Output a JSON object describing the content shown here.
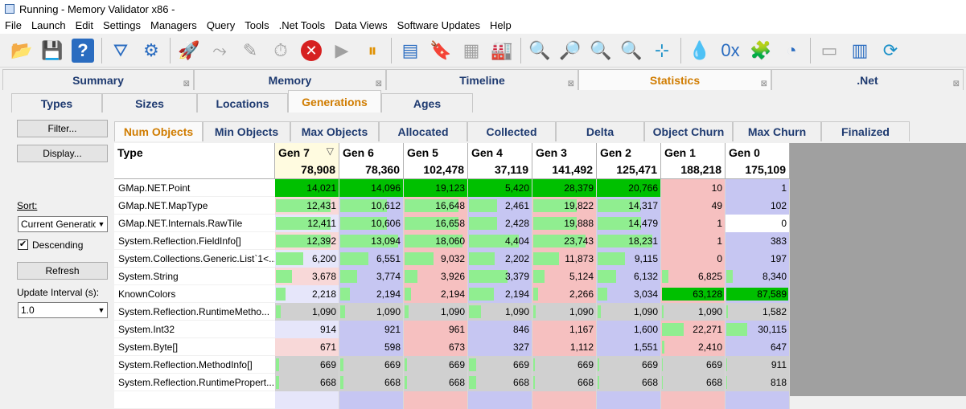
{
  "window": {
    "title": "Running - Memory Validator x86 -"
  },
  "menu": [
    "File",
    "Launch",
    "Edit",
    "Settings",
    "Managers",
    "Query",
    "Tools",
    ".Net Tools",
    "Data Views",
    "Software Updates",
    "Help"
  ],
  "toolbar": [
    {
      "name": "open-icon",
      "glyph": "📂",
      "cls": "ic-open"
    },
    {
      "name": "save-icon",
      "glyph": "💾",
      "cls": "ic-save"
    },
    {
      "name": "help-icon",
      "glyph": "?",
      "cls": "ic-help"
    },
    {
      "sep": true
    },
    {
      "name": "filter-icon",
      "glyph": "⛛",
      "cls": "ic-blue"
    },
    {
      "name": "settings-gear-icon",
      "glyph": "⚙",
      "cls": "ic-blue"
    },
    {
      "sep": true
    },
    {
      "name": "launch-rocket-icon",
      "glyph": "🚀",
      "cls": "ic-gray"
    },
    {
      "name": "inject-icon",
      "glyph": "⤳",
      "cls": "ic-gray"
    },
    {
      "name": "syringe-icon",
      "glyph": "✎",
      "cls": "ic-gray"
    },
    {
      "name": "stopwatch-icon",
      "glyph": "⏱",
      "cls": "ic-gray"
    },
    {
      "name": "stop-icon",
      "glyph": "✕",
      "cls": "ic-red"
    },
    {
      "name": "play-icon",
      "glyph": "▶",
      "cls": "ic-gray"
    },
    {
      "name": "pause-icon",
      "glyph": "⏸",
      "cls": "ic-orange"
    },
    {
      "sep": true
    },
    {
      "name": "add-watermark-icon",
      "glyph": "▤",
      "cls": "ic-blue"
    },
    {
      "name": "add-bookmark-icon",
      "glyph": "🔖",
      "cls": "ic-blue"
    },
    {
      "name": "compare-icon",
      "glyph": "▦",
      "cls": "ic-gray"
    },
    {
      "name": "factory-icon",
      "glyph": "🏭",
      "cls": "ic-gray"
    },
    {
      "sep": true
    },
    {
      "name": "search-icon",
      "glyph": "🔍",
      "cls": "ic-gray"
    },
    {
      "name": "find-address-icon",
      "glyph": "🔎",
      "cls": "ic-gray"
    },
    {
      "name": "find-object-icon",
      "glyph": "🔍",
      "cls": "ic-blue"
    },
    {
      "name": "find-id-icon",
      "glyph": "🔍",
      "cls": "ic-gray"
    },
    {
      "name": "goto-icon",
      "glyph": "⊹",
      "cls": "ic-teal"
    },
    {
      "sep": true
    },
    {
      "name": "leak-drop-icon",
      "glyph": "💧",
      "cls": "ic-teal"
    },
    {
      "name": "cd-icon",
      "glyph": "0x",
      "cls": "ic-blue"
    },
    {
      "name": "puzzle-icon",
      "glyph": "🧩",
      "cls": "ic-orange"
    },
    {
      "name": "refresh-clock-icon",
      "glyph": "◔",
      "cls": "ic-blue"
    },
    {
      "sep": true
    },
    {
      "name": "console-icon",
      "glyph": "▭",
      "cls": "ic-gray"
    },
    {
      "name": "columns-icon",
      "glyph": "▥",
      "cls": "ic-blue"
    },
    {
      "name": "update-icon",
      "glyph": "⟳",
      "cls": "ic-teal"
    }
  ],
  "main_tabs": [
    {
      "label": "Summary",
      "w": 238
    },
    {
      "label": "Memory",
      "w": 239
    },
    {
      "label": "Timeline",
      "w": 239
    },
    {
      "label": "Statistics",
      "w": 240,
      "active": true
    },
    {
      "label": ".Net",
      "w": 239
    }
  ],
  "stat_tabs": [
    {
      "label": "Types",
      "w": 113
    },
    {
      "label": "Sizes",
      "w": 118
    },
    {
      "label": "Locations",
      "w": 113
    },
    {
      "label": "Generations",
      "w": 116,
      "active": true
    },
    {
      "label": "Ages",
      "w": 114
    }
  ],
  "sub_tabs": [
    {
      "label": "Num Objects",
      "w": 110,
      "active": true
    },
    {
      "label": "Min Objects",
      "w": 109
    },
    {
      "label": "Max Objects",
      "w": 110
    },
    {
      "label": "Allocated",
      "w": 110
    },
    {
      "label": "Collected",
      "w": 110
    },
    {
      "label": "Delta",
      "w": 110
    },
    {
      "label": "Object Churn",
      "w": 110
    },
    {
      "label": "Max Churn",
      "w": 110
    },
    {
      "label": "Finalized",
      "w": 110
    }
  ],
  "left_panel": {
    "filter": "Filter...",
    "display": "Display...",
    "sort_label": "Sort:",
    "sort_value": "Current Generation",
    "descending": "Descending",
    "refresh": "Refresh",
    "update_label": "Update Interval (s):",
    "update_value": "1.0"
  },
  "grid": {
    "type_header": "Type",
    "columns": [
      {
        "title": "Gen 7",
        "total": "78,908",
        "bg": "#ffffff",
        "sorted": true
      },
      {
        "title": "Gen 6",
        "total": "78,360",
        "bg": "#c6c6f2"
      },
      {
        "title": "Gen 5",
        "total": "102,478",
        "bg": "#f6c0c0"
      },
      {
        "title": "Gen 4",
        "total": "37,119",
        "bg": "#c6c6f2"
      },
      {
        "title": "Gen 3",
        "total": "141,492",
        "bg": "#f6c0c0"
      },
      {
        "title": "Gen 2",
        "total": "125,471",
        "bg": "#c6c6f2"
      },
      {
        "title": "Gen 1",
        "total": "188,218",
        "bg": "#f6c0c0"
      },
      {
        "title": "Gen 0",
        "total": "175,109",
        "bg": "#c6c6f2"
      }
    ],
    "rows": [
      {
        "type": "GMap.NET.Point",
        "values": [
          "14,021",
          "14,096",
          "19,123",
          "5,420",
          "28,379",
          "20,766",
          "10",
          "1"
        ],
        "fill": [
          1,
          1,
          1,
          1,
          1,
          1,
          0,
          0
        ]
      },
      {
        "type": "GMap.NET.MapType",
        "values": [
          "12,431",
          "10,612",
          "16,648",
          "2,461",
          "19,822",
          "14,317",
          "49",
          "102"
        ],
        "fill": [
          0.88,
          0.75,
          0.87,
          0.45,
          0.7,
          0.69,
          0,
          0
        ]
      },
      {
        "type": "GMap.NET.Internals.RawTile",
        "values": [
          "12,411",
          "10,606",
          "16,658",
          "2,428",
          "19,888",
          "14,479",
          "1",
          "0"
        ],
        "fill": [
          0.88,
          0.75,
          0.87,
          0.45,
          0.7,
          0.7,
          0,
          0
        ]
      },
      {
        "type": "System.Reflection.FieldInfo[]",
        "values": [
          "12,392",
          "13,094",
          "18,060",
          "4,404",
          "23,743",
          "18,231",
          "1",
          "383"
        ],
        "fill": [
          0.88,
          0.93,
          0.94,
          0.81,
          0.84,
          0.88,
          0,
          0
        ]
      },
      {
        "type": "System.Collections.Generic.List`1<...",
        "values": [
          "6,200",
          "6,551",
          "9,032",
          "2,202",
          "11,873",
          "9,115",
          "0",
          "197"
        ],
        "fill": [
          0.44,
          0.46,
          0.47,
          0.41,
          0.42,
          0.44,
          0,
          0
        ]
      },
      {
        "type": "System.String",
        "values": [
          "3,678",
          "3,774",
          "3,926",
          "3,379",
          "5,124",
          "6,132",
          "6,825",
          "8,340"
        ],
        "fill": [
          0.26,
          0.27,
          0.21,
          0.62,
          0.18,
          0.3,
          0.11,
          0.1
        ]
      },
      {
        "type": "KnownColors",
        "values": [
          "2,218",
          "2,194",
          "2,194",
          "2,194",
          "2,266",
          "3,034",
          "63,128",
          "87,589"
        ],
        "fill": [
          0.16,
          0.16,
          0.11,
          0.4,
          0.08,
          0.15,
          1,
          1
        ]
      },
      {
        "type": "System.Reflection.RuntimeMetho...",
        "values": [
          "1,090",
          "1,090",
          "1,090",
          "1,090",
          "1,090",
          "1,090",
          "1,090",
          "1,582"
        ],
        "fill": [
          0.08,
          0.08,
          0.06,
          0.2,
          0.04,
          0.05,
          0.02,
          0.02
        ]
      },
      {
        "type": "System.Int32",
        "values": [
          "914",
          "921",
          "961",
          "846",
          "1,167",
          "1,600",
          "22,271",
          "30,115"
        ],
        "fill": [
          0,
          0,
          0,
          0,
          0,
          0,
          0.35,
          0.34
        ]
      },
      {
        "type": "System.Byte[]",
        "values": [
          "671",
          "598",
          "673",
          "327",
          "1,112",
          "1,551",
          "2,410",
          "647"
        ],
        "fill": [
          0,
          0,
          0,
          0,
          0,
          0,
          0.04,
          0
        ]
      },
      {
        "type": "System.Reflection.MethodInfo[]",
        "values": [
          "669",
          "669",
          "669",
          "669",
          "669",
          "669",
          "669",
          "911"
        ],
        "fill": [
          0.05,
          0.05,
          0.04,
          0.12,
          0.02,
          0.03,
          0.01,
          0.01
        ]
      },
      {
        "type": "System.Reflection.RuntimePropert...",
        "values": [
          "668",
          "668",
          "668",
          "668",
          "668",
          "668",
          "668",
          "818"
        ],
        "fill": [
          0.05,
          0.05,
          0.04,
          0.12,
          0.02,
          0.03,
          0.01,
          0.01
        ]
      },
      {
        "type": "",
        "values": [
          "",
          "",
          "",
          "",
          "",
          "",
          "",
          ""
        ],
        "fill": [
          0,
          0,
          0,
          0,
          0,
          0,
          0,
          0
        ]
      }
    ]
  },
  "colors": {
    "bar_normal": "#90ee90",
    "bar_max": "#00c000",
    "row_bg_strong_pink": "#f6c0c0",
    "row_bg_blue": "#c6c6f2",
    "row_bg_gray": "#d0d0d0",
    "active_tab_text": "#d07c00",
    "tab_text": "#1e3a70"
  }
}
